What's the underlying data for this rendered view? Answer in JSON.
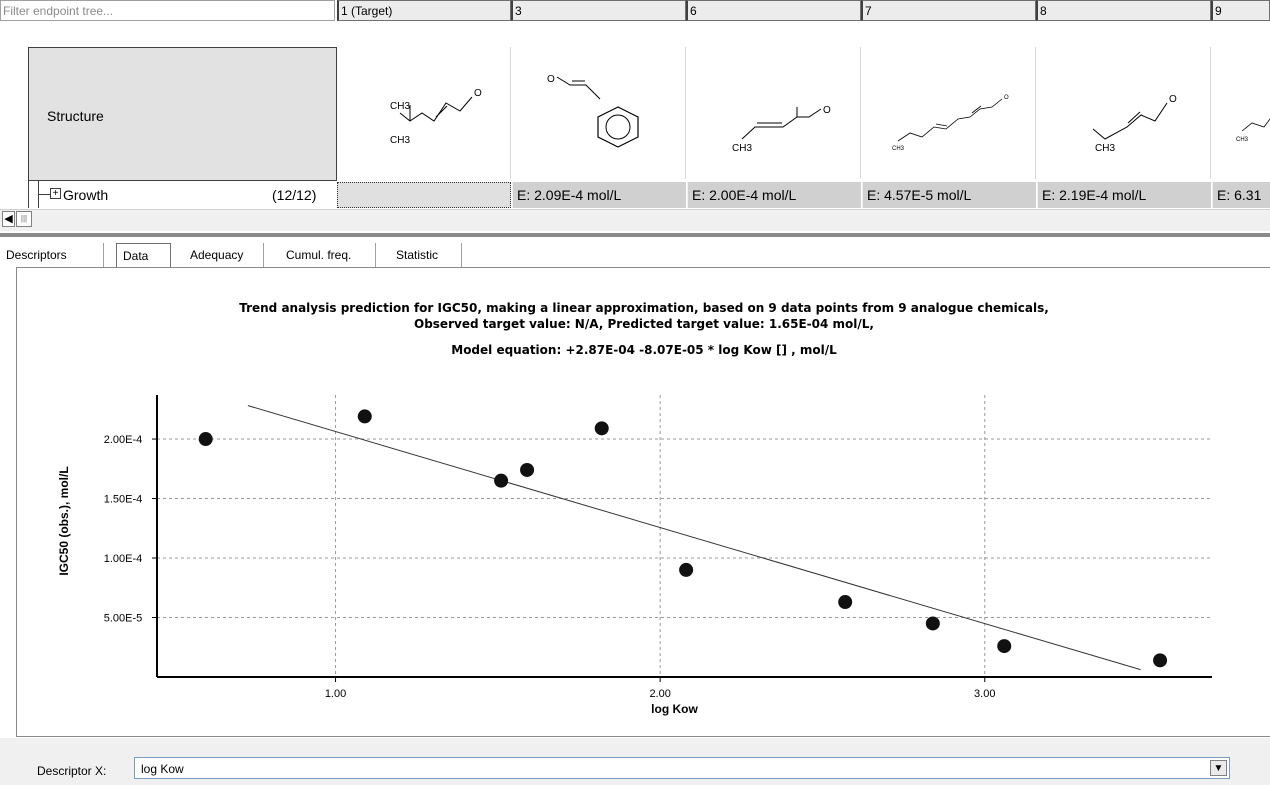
{
  "filter": {
    "placeholder": "Filter endpoint tree..."
  },
  "columns": [
    {
      "label": "1 (Target)",
      "value": ""
    },
    {
      "label": "3",
      "value": "E: 2.09E-4 mol/L"
    },
    {
      "label": "6",
      "value": "E: 2.00E-4 mol/L"
    },
    {
      "label": "7",
      "value": "E: 4.57E-5 mol/L"
    },
    {
      "label": "8",
      "value": "E: 2.19E-4 mol/L"
    },
    {
      "label": "9",
      "value": "E: 6.31"
    }
  ],
  "tree": {
    "structure_label": "Structure",
    "growth_label": "Growth",
    "growth_count": "(12/12)"
  },
  "structures": [
    {
      "labels": [
        "CH3",
        "CH3"
      ],
      "o": "O"
    },
    {
      "labels": [],
      "o": "O"
    },
    {
      "labels": [
        "CH3"
      ],
      "o": "O"
    },
    {
      "labels": [
        "CH3"
      ],
      "o": "O"
    },
    {
      "labels": [
        "CH3"
      ],
      "o": "O"
    },
    {
      "labels": [
        "CH3"
      ],
      "o": ""
    }
  ],
  "tabs": [
    {
      "label": "Descriptors",
      "active": false
    },
    {
      "label": "Data",
      "active": true
    },
    {
      "label": "Adequacy",
      "active": false
    },
    {
      "label": "Cumul. freq.",
      "active": false
    },
    {
      "label": "Statistic",
      "active": false
    }
  ],
  "chart_header": {
    "line1": "Trend analysis prediction for IGC50, making a linear approximation, based on 9 data points from 9 analogue chemicals,",
    "line2": "Observed target value: N/A, Predicted target value: 1.65E-04 mol/L,",
    "line3": "Model equation:  +2.87E-04 -8.07E-05 * log Kow [] ,  mol/L"
  },
  "chart_data": {
    "type": "scatter",
    "xlabel": "log Kow",
    "ylabel": "IGC50 (obs.), mol/L",
    "xlim": [
      0.45,
      3.7
    ],
    "ylim": [
      0,
      0.000237
    ],
    "xticks": [
      1.0,
      2.0,
      3.0
    ],
    "xtick_labels": [
      "1.00",
      "2.00",
      "3.00"
    ],
    "yticks": [
      5e-05,
      0.0001,
      0.00015,
      0.0002
    ],
    "ytick_labels": [
      "5.00E-5",
      "1.00E-4",
      "1.50E-4",
      "2.00E-4"
    ],
    "grid": true,
    "points": [
      {
        "x": 0.6,
        "y": 0.0002
      },
      {
        "x": 1.09,
        "y": 0.000219
      },
      {
        "x": 1.51,
        "y": 0.000165
      },
      {
        "x": 1.59,
        "y": 0.000174
      },
      {
        "x": 1.82,
        "y": 0.000209
      },
      {
        "x": 2.08,
        "y": 9e-05
      },
      {
        "x": 2.57,
        "y": 6.3e-05
      },
      {
        "x": 2.84,
        "y": 4.5e-05
      },
      {
        "x": 3.06,
        "y": 2.6e-05
      },
      {
        "x": 3.54,
        "y": 1.4e-05
      }
    ],
    "fit_line": {
      "intercept": 0.000287,
      "slope": -8.07e-05,
      "x_start": 0.73,
      "x_end": 3.48
    },
    "colors": {
      "points": "#111111",
      "line": "#333333",
      "grid": "#999999"
    }
  },
  "descriptor_x": {
    "label": "Descriptor X:",
    "value": "log Kow"
  }
}
